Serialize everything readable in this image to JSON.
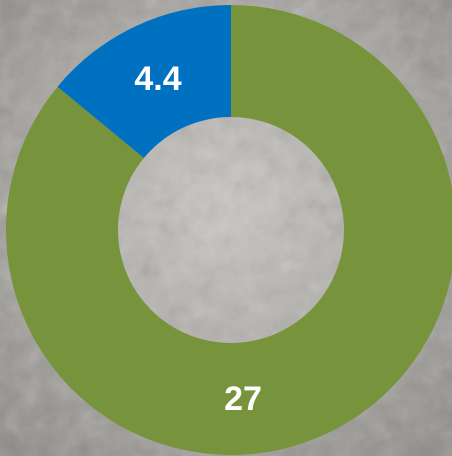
{
  "chart_data": {
    "type": "donut",
    "series": [
      {
        "values": [
          27,
          4.4
        ],
        "colors": [
          "#77933c",
          "#0070c0"
        ]
      }
    ]
  }
}
